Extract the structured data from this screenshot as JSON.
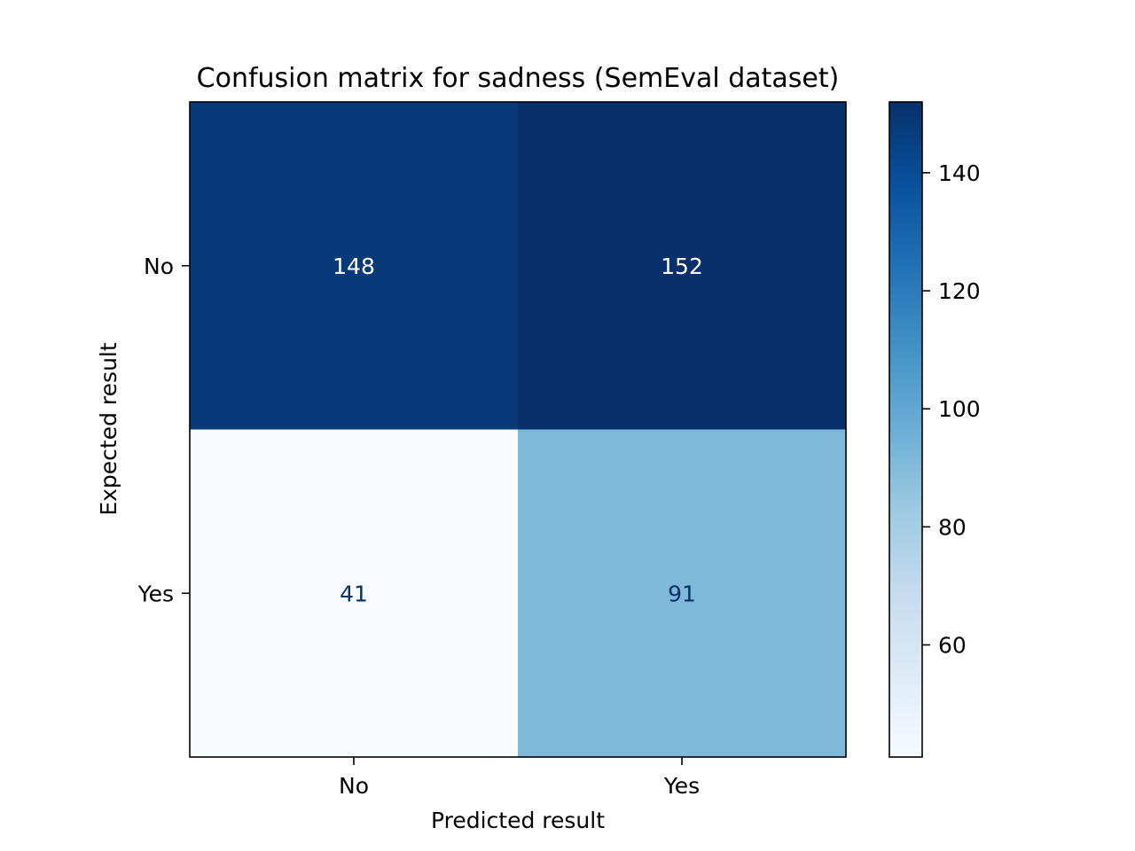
{
  "chart_data": {
    "type": "heatmap",
    "title": "Confusion matrix for sadness (SemEval dataset)",
    "xlabel": "Predicted result",
    "ylabel": "Expected result",
    "x_categories": [
      "No",
      "Yes"
    ],
    "y_categories": [
      "No",
      "Yes"
    ],
    "values": [
      [
        148,
        152
      ],
      [
        41,
        91
      ]
    ],
    "colormap": "Blues",
    "color_range": [
      41,
      152
    ],
    "colorbar": {
      "ticks": [
        60,
        80,
        100,
        120,
        140
      ],
      "tick_labels": [
        "60",
        "80",
        "100",
        "120",
        "140"
      ]
    },
    "text_colors": {
      "dark": "#08306b",
      "light": "#ffffff"
    }
  }
}
